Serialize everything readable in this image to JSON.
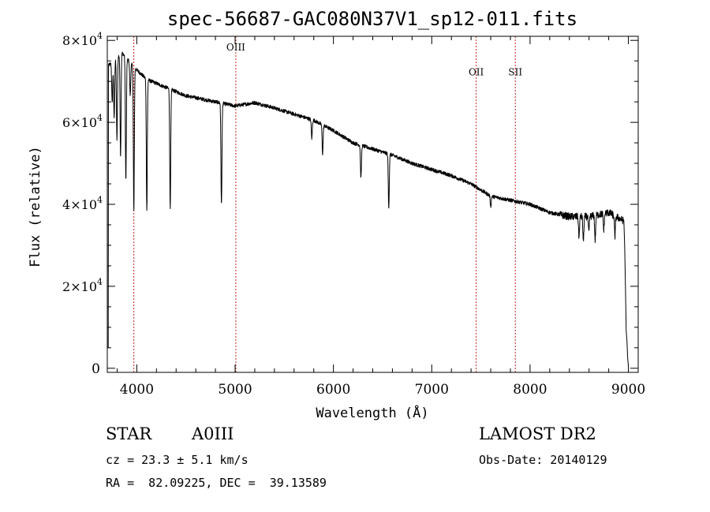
{
  "chart_data": {
    "type": "line",
    "title": "spec-56687-GAC080N37V1_sp12-011.fits",
    "xlabel": "Wavelength (Å)",
    "ylabel": "Flux (relative)",
    "xlim": [
      3700,
      9100
    ],
    "ylim": [
      -1000,
      81000
    ],
    "x_ticks": [
      {
        "value": 4000,
        "label": "4000"
      },
      {
        "value": 5000,
        "label": "5000"
      },
      {
        "value": 6000,
        "label": "6000"
      },
      {
        "value": 7000,
        "label": "7000"
      },
      {
        "value": 8000,
        "label": "8000"
      },
      {
        "value": 9000,
        "label": "9000"
      }
    ],
    "y_ticks": [
      {
        "value": 0,
        "label": "0",
        "exp": ""
      },
      {
        "value": 20000,
        "label": "2×10",
        "exp": "4"
      },
      {
        "value": 40000,
        "label": "4×10",
        "exp": "4"
      },
      {
        "value": 60000,
        "label": "6×10",
        "exp": "4"
      },
      {
        "value": 80000,
        "label": "8×10",
        "exp": "4"
      }
    ],
    "grid": false,
    "line_color": "#000000",
    "marker_color": "#cc2222",
    "continuum": [
      [
        3720,
        74000
      ],
      [
        3850,
        77000
      ],
      [
        3970,
        73500
      ],
      [
        4100,
        70500
      ],
      [
        4300,
        68500
      ],
      [
        4500,
        66500
      ],
      [
        4700,
        65500
      ],
      [
        5000,
        64000
      ],
      [
        5200,
        64800
      ],
      [
        5400,
        63500
      ],
      [
        5600,
        62000
      ],
      [
        5800,
        60500
      ],
      [
        6000,
        58000
      ],
      [
        6200,
        55000
      ],
      [
        6400,
        53500
      ],
      [
        6600,
        52000
      ],
      [
        6800,
        50000
      ],
      [
        7000,
        48500
      ],
      [
        7200,
        47000
      ],
      [
        7400,
        45000
      ],
      [
        7600,
        42000
      ],
      [
        7800,
        41000
      ],
      [
        8000,
        40000
      ],
      [
        8200,
        38000
      ],
      [
        8400,
        37000
      ],
      [
        8600,
        37000
      ],
      [
        8800,
        38000
      ],
      [
        8950,
        36000
      ]
    ],
    "absorption_lines": [
      {
        "x": 3750,
        "depth": 10000
      },
      {
        "x": 3770,
        "depth": 14000
      },
      {
        "x": 3798,
        "depth": 20000
      },
      {
        "x": 3835,
        "depth": 25000
      },
      {
        "x": 3889,
        "depth": 30000
      },
      {
        "x": 3933,
        "depth": 8000
      },
      {
        "x": 3970,
        "depth": 35000
      },
      {
        "x": 4102,
        "depth": 32000
      },
      {
        "x": 4340,
        "depth": 29000
      },
      {
        "x": 4861,
        "depth": 25000
      },
      {
        "x": 5780,
        "depth": 4500
      },
      {
        "x": 5890,
        "depth": 7000
      },
      {
        "x": 6280,
        "depth": 8000
      },
      {
        "x": 6563,
        "depth": 13000
      },
      {
        "x": 7600,
        "depth": 2500
      },
      {
        "x": 8498,
        "depth": 5000
      },
      {
        "x": 8542,
        "depth": 6000
      },
      {
        "x": 8598,
        "depth": 4000
      },
      {
        "x": 8662,
        "depth": 6000
      },
      {
        "x": 8750,
        "depth": 4000
      },
      {
        "x": 8863,
        "depth": 5000
      }
    ],
    "line_markers": [
      {
        "x": 3970,
        "label": "",
        "label_y": 0
      },
      {
        "x": 5007,
        "label": "OIII",
        "label_y": 77500
      },
      {
        "x": 7452,
        "label": "OII",
        "label_y": 71500
      },
      {
        "x": 7850,
        "label": "SII",
        "label_y": 71500
      }
    ]
  },
  "info": {
    "object_type": "STAR",
    "subclass": "A0III",
    "survey": "LAMOST DR2",
    "cz": "cz = 23.3 ± 5.1 km/s",
    "obs_date": "Obs-Date: 20140129",
    "radec": "RA =  82.09225, DEC =  39.13589"
  }
}
